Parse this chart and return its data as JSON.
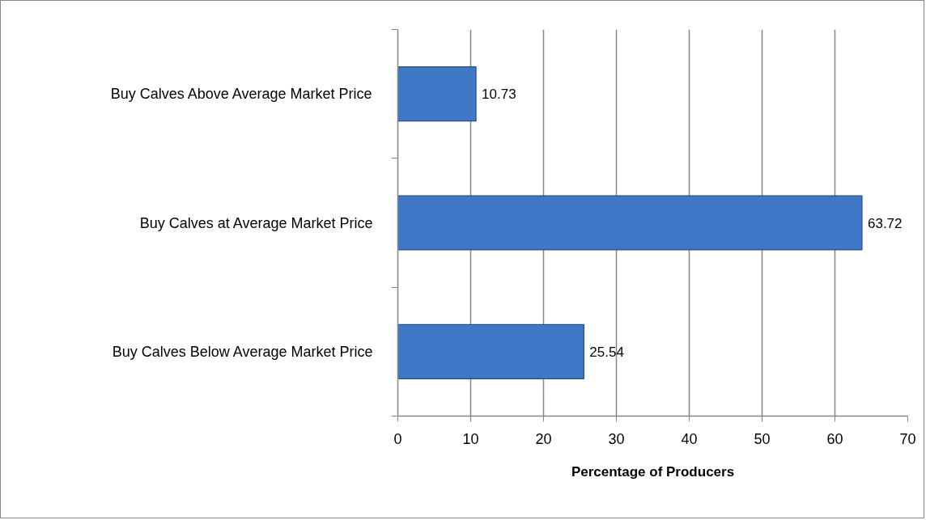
{
  "chart_data": {
    "type": "bar",
    "orientation": "horizontal",
    "categories": [
      "Buy Calves Above Average Market Price",
      "Buy Calves at Average Market Price",
      "Buy Calves Below Average Market Price"
    ],
    "values": [
      10.73,
      63.72,
      25.54
    ],
    "color": "#3f78c6",
    "xlabel": "Percentage of Producers",
    "xlim": [
      0,
      70
    ],
    "xticks": [
      0,
      10,
      20,
      30,
      40,
      50,
      60,
      70
    ],
    "grid": "x",
    "data_labels": true
  }
}
